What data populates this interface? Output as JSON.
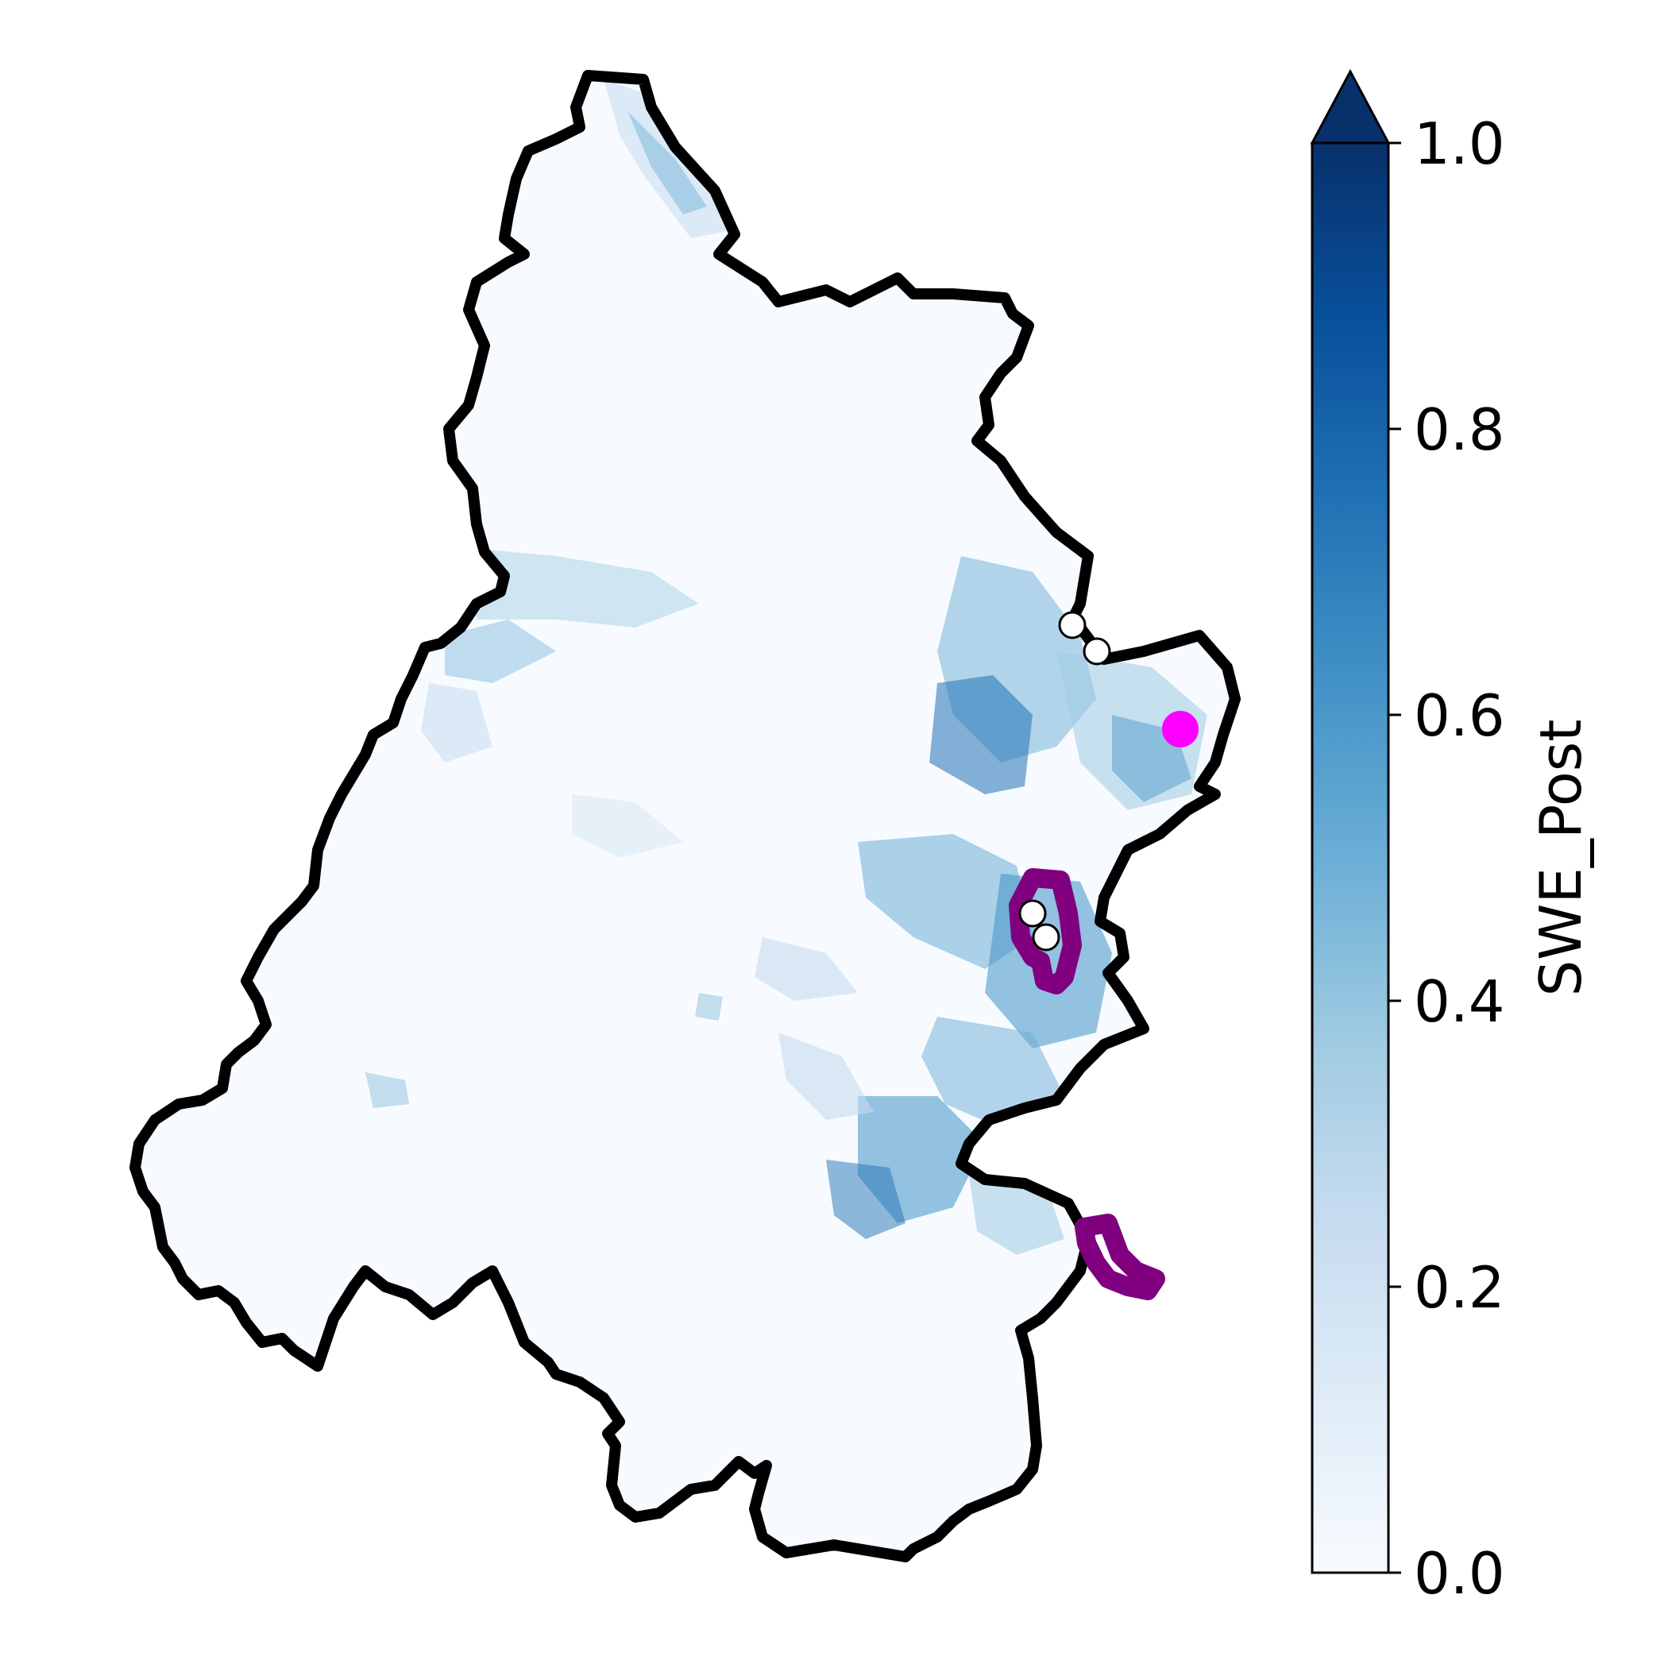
{
  "map": {
    "basin_outline_color": "#000000",
    "snow_colormap": "Blues",
    "site_markers": [
      {
        "name": "white-station",
        "color": "#ffffff",
        "count": 4
      },
      {
        "name": "magenta-site",
        "color": "#ff00ff",
        "count": 1
      }
    ],
    "highlight_region_color": "#800080"
  },
  "colorbar": {
    "label": "SWE_Post",
    "min": 0.0,
    "max": 1.0,
    "extend": "max",
    "ticks": [
      {
        "value": 0.0,
        "label": "0.0"
      },
      {
        "value": 0.2,
        "label": "0.2"
      },
      {
        "value": 0.4,
        "label": "0.4"
      },
      {
        "value": 0.6,
        "label": "0.6"
      },
      {
        "value": 0.8,
        "label": "0.8"
      },
      {
        "value": 1.0,
        "label": "1.0"
      }
    ],
    "color_low": "#f7fbff",
    "color_mid": "#6baed6",
    "color_high": "#08306b"
  }
}
